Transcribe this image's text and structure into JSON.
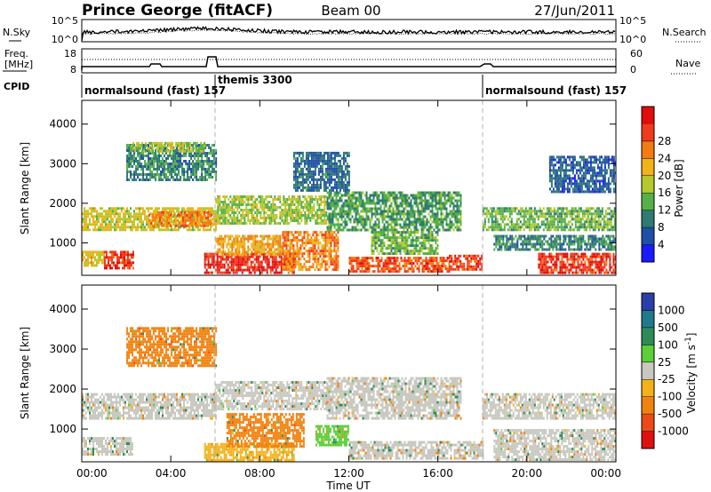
{
  "header": {
    "station": "Prince George (fitACF)",
    "beam": "Beam 00",
    "date": "27/Jun/2011"
  },
  "top_panels": {
    "nsky": {
      "label": "N.Sky",
      "ticks": [
        "10^5",
        "10^0"
      ]
    },
    "nsearch": {
      "label": "N.Search",
      "ticks": [
        "10^5",
        "10^0"
      ]
    },
    "freq": {
      "label_line1": "Freq.",
      "label_line2": "[MHz]",
      "ticks": [
        "18",
        "8"
      ]
    },
    "nave": {
      "label": "Nave",
      "ticks": [
        "60",
        "0"
      ]
    },
    "cpid": {
      "label": "CPID",
      "segments": [
        {
          "label": "normalsound (fast) 157",
          "start_hour": 0,
          "end_hour": 6
        },
        {
          "label": "themis 3300",
          "start_hour": 6,
          "end_hour": 18
        },
        {
          "label": "normalsound (fast) 157",
          "start_hour": 18,
          "end_hour": 24
        }
      ]
    }
  },
  "axes": {
    "x_label": "Time UT",
    "x_ticks": [
      "00:00",
      "04:00",
      "08:00",
      "12:00",
      "16:00",
      "20:00",
      "00:00"
    ],
    "y_label": "Slant Range [km]",
    "y_ticks": [
      "1000",
      "2000",
      "3000",
      "4000"
    ]
  },
  "colorbars": {
    "power": {
      "label": "Power [dB]",
      "ticks": [
        "4",
        "8",
        "12",
        "16",
        "20",
        "24",
        "28"
      ],
      "colors": [
        "#1a1aff",
        "#1f4fa8",
        "#2f7a72",
        "#55b04a",
        "#b3c92e",
        "#f2b21a",
        "#f47a12",
        "#ef3b1e",
        "#e10d0d"
      ]
    },
    "velocity": {
      "label": "Velocity [m s^-1]",
      "ticks": [
        "1000",
        "500",
        "100",
        "25",
        "-25",
        "-100",
        "-500",
        "-1000"
      ],
      "colors": [
        "#2a3fa8",
        "#1f7a8c",
        "#2e8b57",
        "#5ccf3a",
        "#c8c8c0",
        "#f4b21a",
        "#f2820f",
        "#ee4a18",
        "#e01010"
      ]
    }
  },
  "chart_data": [
    {
      "type": "heatmap",
      "title": "Power [dB]",
      "xlabel": "Time UT",
      "ylabel": "Slant Range [km]",
      "xlim": [
        0,
        24
      ],
      "ylim": [
        180,
        4600
      ],
      "zlim": [
        0,
        30
      ],
      "regions": [
        {
          "t0": 0.0,
          "t1": 6.0,
          "r0": 1300,
          "r1": 1900,
          "level": 16
        },
        {
          "t0": 0.0,
          "t1": 1.0,
          "r0": 400,
          "r1": 800,
          "level": 18
        },
        {
          "t0": 1.0,
          "t1": 2.3,
          "r0": 350,
          "r1": 800,
          "level": 27
        },
        {
          "t0": 2.0,
          "t1": 6.0,
          "r0": 2600,
          "r1": 3500,
          "level": 8
        },
        {
          "t0": 2.2,
          "t1": 5.5,
          "r0": 3300,
          "r1": 3550,
          "level": 14
        },
        {
          "t0": 3.0,
          "t1": 5.8,
          "r0": 1450,
          "r1": 1800,
          "level": 22
        },
        {
          "t0": 5.5,
          "t1": 9.5,
          "r0": 250,
          "r1": 750,
          "level": 28
        },
        {
          "t0": 6.0,
          "t1": 9.0,
          "r0": 700,
          "r1": 1200,
          "level": 20
        },
        {
          "t0": 6.0,
          "t1": 11.0,
          "r0": 1500,
          "r1": 2200,
          "level": 14
        },
        {
          "t0": 9.0,
          "t1": 11.5,
          "r0": 300,
          "r1": 1300,
          "level": 22
        },
        {
          "t0": 9.5,
          "t1": 12.0,
          "r0": 2300,
          "r1": 3300,
          "level": 6
        },
        {
          "t0": 11.0,
          "t1": 17.0,
          "r0": 1300,
          "r1": 2300,
          "level": 10
        },
        {
          "t0": 12.0,
          "t1": 16.5,
          "r0": 300,
          "r1": 650,
          "level": 25
        },
        {
          "t0": 13.0,
          "t1": 16.0,
          "r0": 700,
          "r1": 1300,
          "level": 12
        },
        {
          "t0": 16.5,
          "t1": 18.0,
          "r0": 350,
          "r1": 700,
          "level": 26
        },
        {
          "t0": 18.0,
          "t1": 24.0,
          "r0": 1300,
          "r1": 1900,
          "level": 12
        },
        {
          "t0": 18.5,
          "t1": 24.0,
          "r0": 800,
          "r1": 1200,
          "level": 8
        },
        {
          "t0": 20.5,
          "t1": 24.0,
          "r0": 250,
          "r1": 750,
          "level": 27
        },
        {
          "t0": 21.0,
          "t1": 24.0,
          "r0": 2300,
          "r1": 3200,
          "level": 5
        }
      ]
    },
    {
      "type": "heatmap",
      "title": "Velocity [m s^-1]",
      "xlabel": "Time UT",
      "ylabel": "Slant Range [km]",
      "xlim": [
        0,
        24
      ],
      "ylim": [
        180,
        4600
      ],
      "zlim": [
        -1000,
        1000
      ],
      "regions": [
        {
          "t0": 0.0,
          "t1": 6.0,
          "r0": 1300,
          "r1": 1900,
          "value": 0
        },
        {
          "t0": 0.0,
          "t1": 2.3,
          "r0": 350,
          "r1": 800,
          "value": 0
        },
        {
          "t0": 2.0,
          "t1": 6.0,
          "r0": 2600,
          "r1": 3550,
          "value": -150
        },
        {
          "t0": 5.5,
          "t1": 9.5,
          "r0": 250,
          "r1": 650,
          "value": -80
        },
        {
          "t0": 6.0,
          "t1": 11.0,
          "r0": 1500,
          "r1": 2200,
          "value": 0
        },
        {
          "t0": 6.5,
          "t1": 10.0,
          "r0": 600,
          "r1": 1400,
          "value": -120
        },
        {
          "t0": 10.5,
          "t1": 12.0,
          "r0": 600,
          "r1": 1100,
          "value": 70
        },
        {
          "t0": 11.0,
          "t1": 17.0,
          "r0": 1300,
          "r1": 2300,
          "value": 0
        },
        {
          "t0": 12.0,
          "t1": 18.0,
          "r0": 250,
          "r1": 700,
          "value": 0
        },
        {
          "t0": 18.0,
          "t1": 24.0,
          "r0": 1300,
          "r1": 1900,
          "value": 0
        },
        {
          "t0": 18.5,
          "t1": 24.0,
          "r0": 250,
          "r1": 1000,
          "value": 0
        }
      ]
    }
  ]
}
